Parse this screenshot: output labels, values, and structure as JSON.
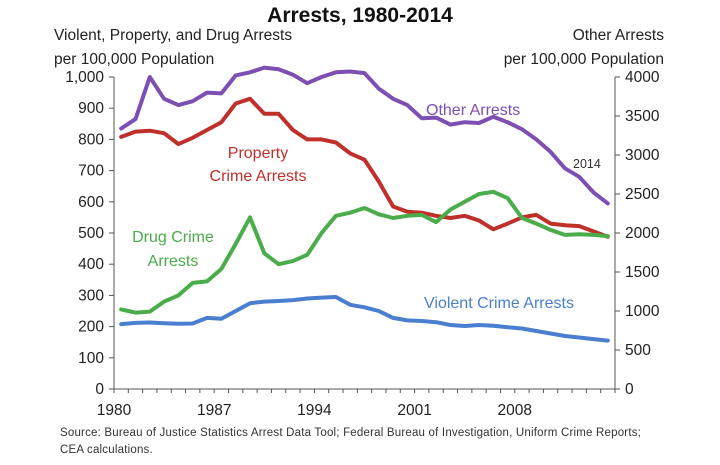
{
  "chart_data": {
    "type": "line",
    "title": "Arrests, 1980-2014",
    "left_axis_label": "Violent, Property, and Drug Arrests per 100,000 Population",
    "right_axis_label": "Other Arrests per 100,000 Population",
    "ylim_left": [
      0,
      1000
    ],
    "ylim_right": [
      0,
      4000
    ],
    "yticks_left": [
      "0",
      "100",
      "200",
      "300",
      "400",
      "500",
      "600",
      "700",
      "800",
      "900",
      "1,000"
    ],
    "yticks_right": [
      "0",
      "500",
      "1000",
      "1500",
      "2000",
      "2500",
      "3000",
      "3500",
      "4000"
    ],
    "xticks": [
      "1980",
      "1987",
      "1994",
      "2001",
      "2008"
    ],
    "x": [
      1980,
      1981,
      1982,
      1983,
      1984,
      1985,
      1986,
      1987,
      1988,
      1989,
      1990,
      1991,
      1992,
      1993,
      1994,
      1995,
      1996,
      1997,
      1998,
      1999,
      2000,
      2001,
      2002,
      2003,
      2004,
      2005,
      2006,
      2007,
      2008,
      2009,
      2010,
      2011,
      2012,
      2013,
      2014
    ],
    "series": [
      {
        "name": "Other Arrests",
        "axis": "right",
        "color": "#7e4fb3",
        "values": [
          3340,
          3460,
          4000,
          3720,
          3640,
          3690,
          3800,
          3790,
          4020,
          4060,
          4120,
          4100,
          4030,
          3920,
          4000,
          4060,
          4070,
          4050,
          3850,
          3720,
          3640,
          3470,
          3480,
          3390,
          3420,
          3410,
          3490,
          3420,
          3330,
          3200,
          3040,
          2830,
          2720,
          2520,
          2380
        ]
      },
      {
        "name": "Property Crime Arrests",
        "axis": "left",
        "color": "#c0302b",
        "values": [
          808,
          825,
          828,
          820,
          785,
          805,
          830,
          855,
          915,
          930,
          882,
          882,
          830,
          800,
          800,
          790,
          755,
          735,
          665,
          585,
          568,
          565,
          555,
          548,
          555,
          540,
          512,
          530,
          550,
          558,
          530,
          525,
          522,
          505,
          488
        ]
      },
      {
        "name": "Drug Crime Arrests",
        "axis": "left",
        "color": "#4aac4a",
        "values": [
          255,
          245,
          248,
          280,
          300,
          340,
          345,
          385,
          465,
          550,
          435,
          400,
          410,
          430,
          500,
          555,
          565,
          580,
          560,
          548,
          555,
          558,
          535,
          575,
          600,
          625,
          632,
          612,
          548,
          530,
          510,
          494,
          496,
          494,
          490
        ]
      },
      {
        "name": "Violent Crime Arrests",
        "axis": "left",
        "color": "#4a7fcf",
        "values": [
          208,
          212,
          213,
          211,
          209,
          210,
          228,
          225,
          250,
          275,
          280,
          282,
          285,
          290,
          293,
          295,
          270,
          262,
          250,
          228,
          220,
          218,
          214,
          205,
          202,
          205,
          203,
          198,
          194,
          186,
          178,
          170,
          165,
          160,
          155
        ]
      }
    ],
    "labels": {
      "other": "Other Arrests",
      "property_line1": "Property",
      "property_line2": "Crime Arrests",
      "drug_line1": "Drug Crime",
      "drug_line2": "Arrests",
      "violent": "Violent Crime Arrests",
      "year_note": "2014"
    },
    "grid": false,
    "legend": "none (series labeled inline)"
  },
  "source": "Source: Bureau of Justice Statistics Arrest Data Tool; Federal Bureau of Investigation, Uniform Crime Reports; CEA calculations."
}
